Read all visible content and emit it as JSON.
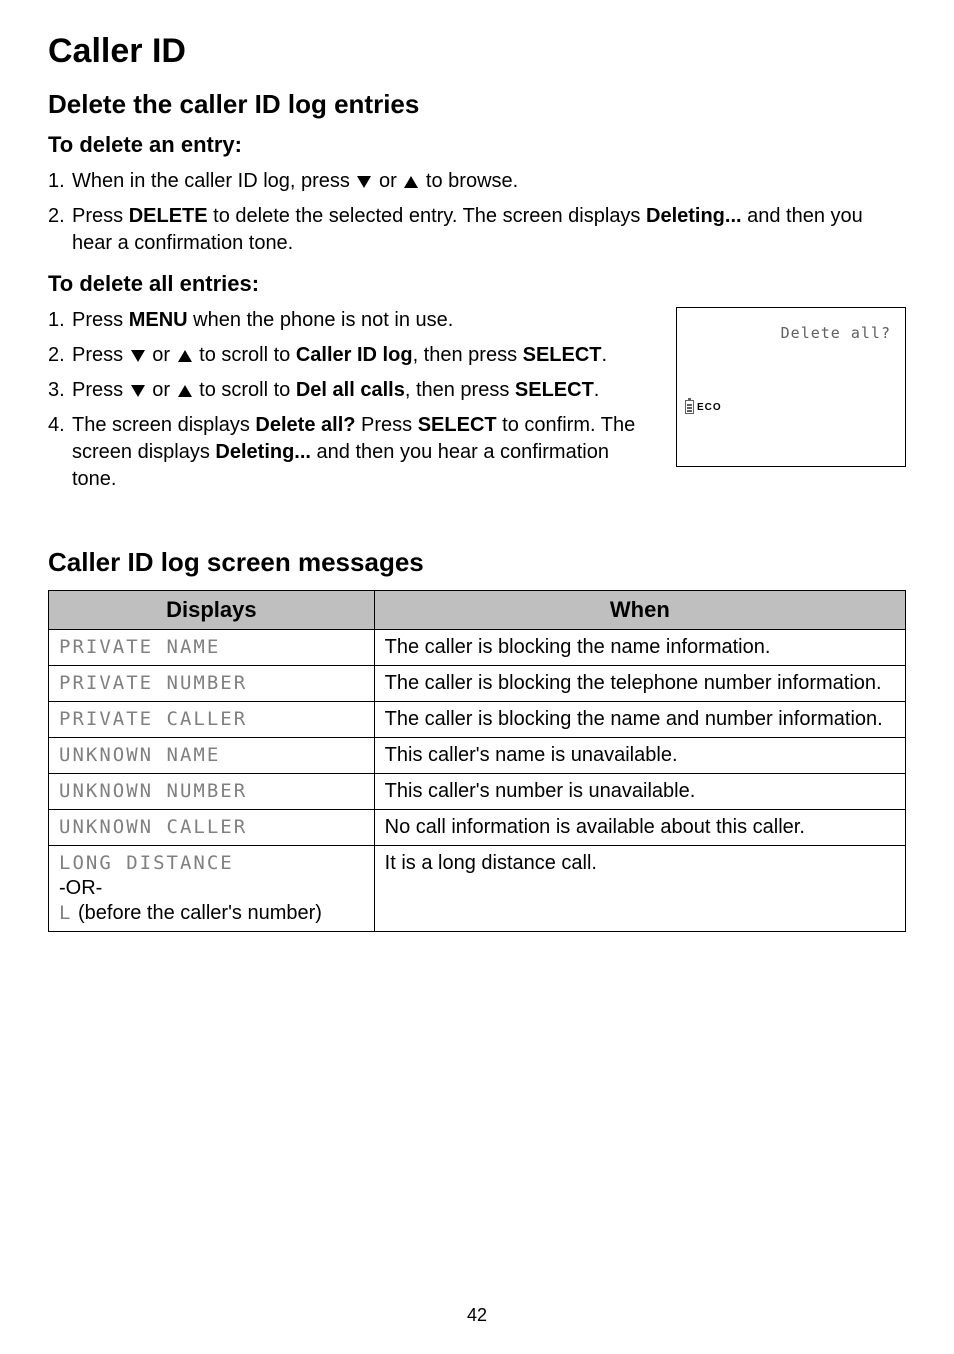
{
  "title": "Caller ID",
  "section1": {
    "heading": "Delete the caller ID log entries",
    "sub1": "To delete an entry:",
    "step1_num": "1.",
    "step1_a": "When in the caller ID log, press ",
    "step1_b": " or ",
    "step1_c": " to browse.",
    "step2_num": "2.",
    "step2_a": "Press ",
    "step2_b": "DELETE",
    "step2_c": " to delete the selected entry. The screen displays ",
    "step2_d": "Deleting...",
    "step2_e": " and then you hear a confirmation tone.",
    "sub2": "To delete all entries:",
    "b_step1_num": "1.",
    "b_step1_a": "Press ",
    "b_step1_b": "MENU",
    "b_step1_c": " when the phone is not in use.",
    "b_step2_num": "2.",
    "b_step2_a": "Press ",
    "b_step2_b": " or ",
    "b_step2_c": " to scroll to ",
    "b_step2_d": "Caller ID log",
    "b_step2_e": ", then press ",
    "b_step2_f": "SELECT",
    "b_step2_g": ".",
    "b_step3_num": "3.",
    "b_step3_a": "Press ",
    "b_step3_b": " or ",
    "b_step3_c": " to scroll to ",
    "b_step3_d": "Del all calls",
    "b_step3_e": ", then press ",
    "b_step3_f": "SELECT",
    "b_step3_g": ".",
    "b_step4_num": "4.",
    "b_step4_a": "The screen displays ",
    "b_step4_b": "Delete all?",
    "b_step4_c": " Press ",
    "b_step4_d": "SELECT",
    "b_step4_e": " to confirm. The screen displays ",
    "b_step4_f": "Deleting...",
    "b_step4_g": " and then you hear a confirmation tone."
  },
  "screen": {
    "line1": "Delete all?",
    "eco": "ECO"
  },
  "section2": {
    "heading": "Caller ID log screen messages",
    "th1": "Displays",
    "th2": "When",
    "rows": [
      {
        "d": "PRIVATE NAME",
        "w": "The caller is blocking the name information."
      },
      {
        "d": "PRIVATE NUMBER",
        "w": "The caller is blocking the telephone number information."
      },
      {
        "d": "PRIVATE CALLER",
        "w": "The caller is blocking the name and number information."
      },
      {
        "d": "UNKNOWN NAME",
        "w": "This caller's name is unavailable."
      },
      {
        "d": "UNKNOWN NUMBER",
        "w": "This caller's number is unavailable."
      },
      {
        "d": "UNKNOWN CALLER",
        "w": "No call information is available about this caller."
      }
    ],
    "row7_d1": "LONG DISTANCE",
    "row7_or": "-OR-",
    "row7_d2_a": "L",
    "row7_d2_b": " (before the caller's number)",
    "row7_w": "It is a long distance call."
  },
  "page_number": "42"
}
